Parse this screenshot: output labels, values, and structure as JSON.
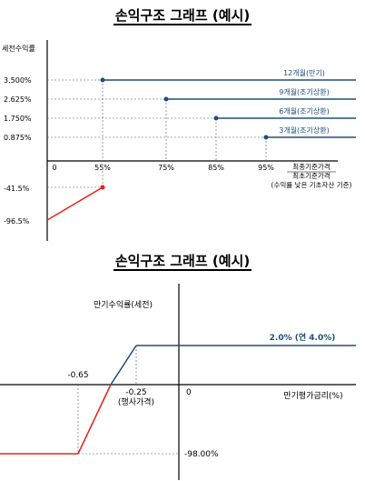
{
  "chart_data": [
    {
      "type": "line",
      "title": "손익구조 그래프 (예시)",
      "ylabel": "세전수익률",
      "xlabel_lines": [
        "최종기준가격",
        "최초기준가격",
        "(수익률 낮은 기초자산 기준)"
      ],
      "x_ticks": [
        "0",
        "55%",
        "75%",
        "85%",
        "95%"
      ],
      "y_ticks": [
        "3.500%",
        "2.625%",
        "1.750%",
        "0.875%",
        "-41.5%",
        "-96.5%"
      ],
      "steps": [
        {
          "x": "55%",
          "y": "3.500%",
          "label": "12개월(만기)"
        },
        {
          "x": "75%",
          "y": "2.625%",
          "label": "9개월(조기상환)"
        },
        {
          "x": "85%",
          "y": "1.750%",
          "label": "6개월(조기상환)"
        },
        {
          "x": "95%",
          "y": "0.875%",
          "label": "3개월(조기상환)"
        }
      ],
      "loss_segment": {
        "from": {
          "x": 0,
          "y": -96.5
        },
        "to": {
          "x": 55,
          "y": -41.5
        }
      },
      "colors": {
        "gain": "#1f4e79",
        "loss": "#e8201c"
      }
    },
    {
      "type": "line",
      "title": "손익구조 그래프 (예시)",
      "ylabel": "만기수익률(세전)",
      "xlabel": "만기평가금리(%)",
      "x_ticks": [
        "-0.65",
        "-0.25",
        "0"
      ],
      "strike_label": "(행사가격)",
      "cap_label": "2.0% (연 4.0%)",
      "floor_label": "-98.00%",
      "points": [
        {
          "x": -0.65,
          "y": -98.0
        },
        {
          "x": -0.25,
          "y": 2.0
        }
      ],
      "colors": {
        "gain": "#1f4e79",
        "loss": "#e8201c"
      }
    }
  ]
}
